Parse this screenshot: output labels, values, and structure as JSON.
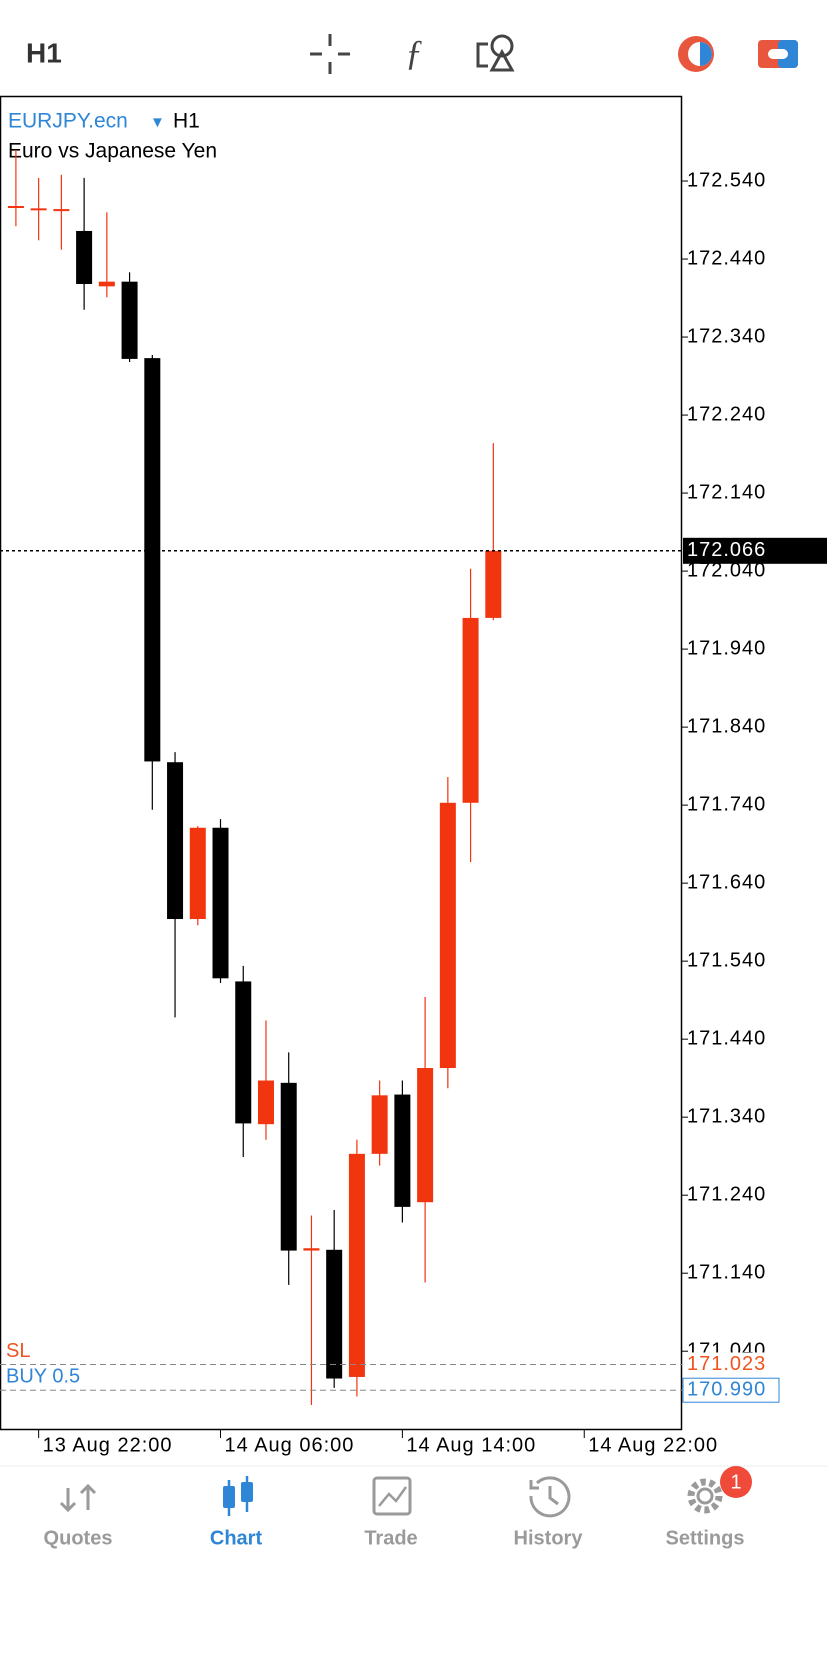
{
  "toolbar": {
    "timeframe": "H1"
  },
  "chart_data": {
    "type": "candlestick",
    "symbol": "EURJPY.ecn",
    "period": "H1",
    "description": "Euro vs Japanese Yen",
    "up_color": "#f0350f",
    "down_color": "#000000",
    "open": [
      172.508,
      172.505,
      172.504,
      172.476,
      172.405,
      172.411,
      172.313,
      171.795,
      171.594,
      171.711,
      171.514,
      171.331,
      171.384,
      171.169,
      171.17,
      171.007,
      171.293,
      171.369,
      171.231,
      171.403,
      171.743,
      171.98
    ],
    "high": [
      172.58,
      172.544,
      172.548,
      172.544,
      172.5,
      172.423,
      172.317,
      171.808,
      171.713,
      171.722,
      171.534,
      171.464,
      171.423,
      171.214,
      171.221,
      171.311,
      171.387,
      171.387,
      171.494,
      171.776,
      172.043,
      172.204
    ],
    "low": [
      172.482,
      172.464,
      172.452,
      172.375,
      172.391,
      172.308,
      171.734,
      171.468,
      171.586,
      171.512,
      171.289,
      171.311,
      171.125,
      170.971,
      170.993,
      170.982,
      171.278,
      171.205,
      171.128,
      171.377,
      171.667,
      171.977
    ],
    "close": [
      172.508,
      172.505,
      172.504,
      172.408,
      172.411,
      172.312,
      171.796,
      171.594,
      171.711,
      171.518,
      171.332,
      171.387,
      171.169,
      171.172,
      171.005,
      171.293,
      171.368,
      171.225,
      171.403,
      171.743,
      171.98,
      172.066
    ],
    "xlim": [
      -0.7,
      29.3
    ],
    "xticks": [
      {
        "value": 1,
        "label": "13 Aug 22:00"
      },
      {
        "value": 9,
        "label": "14 Aug 06:00"
      },
      {
        "value": 17,
        "label": "14 Aug 14:00"
      },
      {
        "value": 25,
        "label": "14 Aug 22:00"
      }
    ],
    "ylim": [
      170.939,
      172.649
    ],
    "yticks": [
      {
        "value": 171.04,
        "label": "171.040"
      },
      {
        "value": 171.14,
        "label": "171.140"
      },
      {
        "value": 171.24,
        "label": "171.240"
      },
      {
        "value": 171.34,
        "label": "171.340"
      },
      {
        "value": 171.44,
        "label": "171.440"
      },
      {
        "value": 171.54,
        "label": "171.540"
      },
      {
        "value": 171.64,
        "label": "171.640"
      },
      {
        "value": 171.74,
        "label": "171.740"
      },
      {
        "value": 171.84,
        "label": "171.840"
      },
      {
        "value": 171.94,
        "label": "171.940"
      },
      {
        "value": 172.04,
        "label": "172.040"
      },
      {
        "value": 172.14,
        "label": "172.140"
      },
      {
        "value": 172.24,
        "label": "172.240"
      },
      {
        "value": 172.34,
        "label": "172.340"
      },
      {
        "value": 172.44,
        "label": "172.440"
      },
      {
        "value": 172.54,
        "label": "172.540"
      }
    ],
    "last_price": {
      "value": 172.066,
      "label": "172.066"
    },
    "levels": [
      {
        "name": "SL",
        "value": 171.023,
        "label": "171.023",
        "color": "#f0541e"
      },
      {
        "name": "BUY 0.5",
        "value": 170.99,
        "label": "170.990",
        "color": "#2f86d6"
      }
    ]
  },
  "tabs": [
    {
      "label": "Quotes"
    },
    {
      "label": "Chart"
    },
    {
      "label": "Trade"
    },
    {
      "label": "History"
    },
    {
      "label": "Settings",
      "badge": 1
    }
  ],
  "active_tab": 1
}
